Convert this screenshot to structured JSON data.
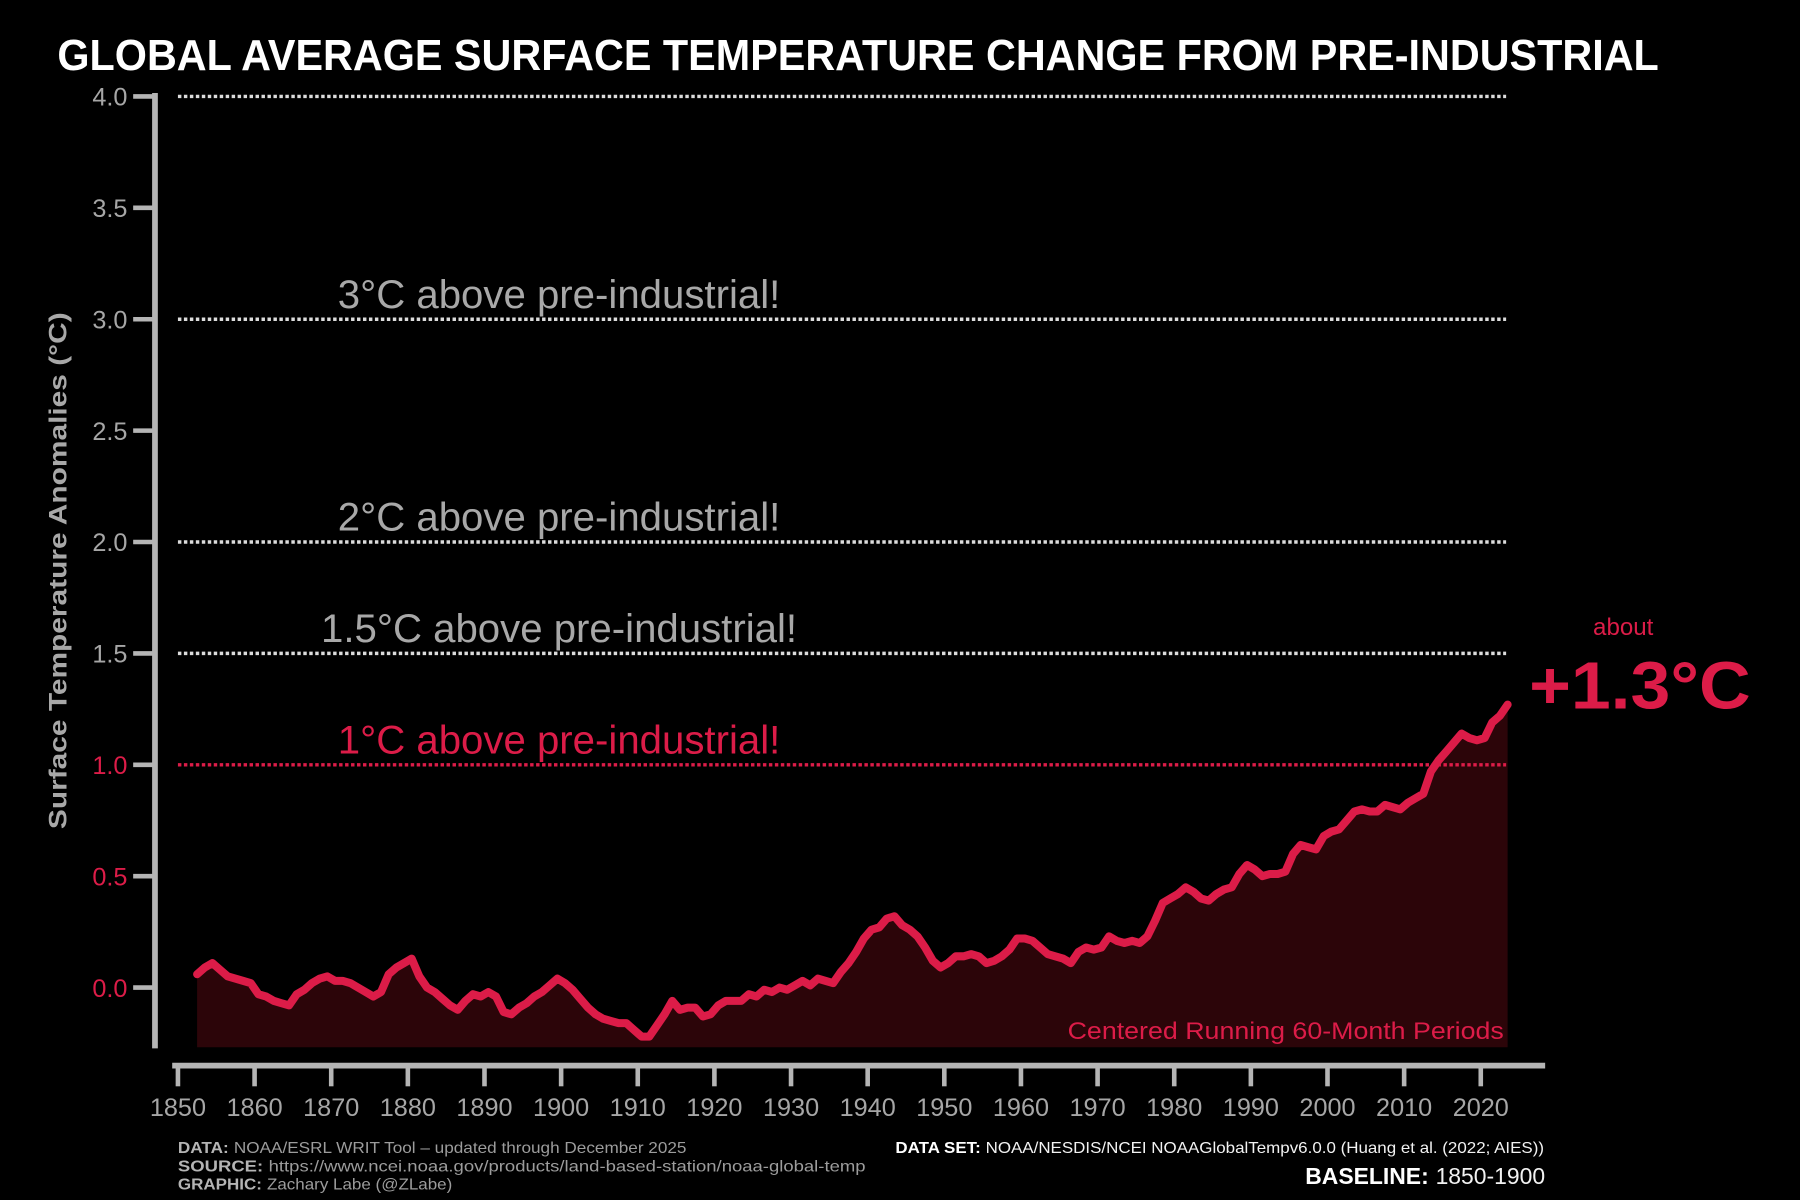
{
  "chart_data": {
    "type": "area",
    "title": "GLOBAL AVERAGE SURFACE TEMPERATURE CHANGE FROM PRE-INDUSTRIAL",
    "xlabel": "",
    "ylabel": "Surface Temperature Anomalies (°C)",
    "xlim": [
      1849.25,
      2028.4
    ],
    "ylim": [
      -0.268,
      4.0
    ],
    "grid": false,
    "x_ticks": [
      {
        "value": 1850,
        "label": "1850"
      },
      {
        "value": 1860,
        "label": "1860"
      },
      {
        "value": 1870,
        "label": "1870"
      },
      {
        "value": 1880,
        "label": "1880"
      },
      {
        "value": 1890,
        "label": "1890"
      },
      {
        "value": 1900,
        "label": "1900"
      },
      {
        "value": 1910,
        "label": "1910"
      },
      {
        "value": 1920,
        "label": "1920"
      },
      {
        "value": 1930,
        "label": "1930"
      },
      {
        "value": 1940,
        "label": "1940"
      },
      {
        "value": 1950,
        "label": "1950"
      },
      {
        "value": 1960,
        "label": "1960"
      },
      {
        "value": 1970,
        "label": "1970"
      },
      {
        "value": 1980,
        "label": "1980"
      },
      {
        "value": 1990,
        "label": "1990"
      },
      {
        "value": 2000,
        "label": "2000"
      },
      {
        "value": 2010,
        "label": "2010"
      },
      {
        "value": 2020,
        "label": "2020"
      }
    ],
    "y_ticks": [
      {
        "value": 0.0,
        "label": "0.0",
        "color": "#dc1c48"
      },
      {
        "value": 0.5,
        "label": "0.5",
        "color": "#dc1c48"
      },
      {
        "value": 1.0,
        "label": "1.0",
        "color": "#dc1c48"
      },
      {
        "value": 1.5,
        "label": "1.5",
        "color": "#a6a6a6"
      },
      {
        "value": 2.0,
        "label": "2.0",
        "color": "#a6a6a6"
      },
      {
        "value": 2.5,
        "label": "2.5",
        "color": "#a6a6a6"
      },
      {
        "value": 3.0,
        "label": "3.0",
        "color": "#a6a6a6"
      },
      {
        "value": 3.5,
        "label": "3.5",
        "color": "#a6a6a6"
      },
      {
        "value": 4.0,
        "label": "4.0",
        "color": "#a6a6a6"
      }
    ],
    "thresholds": [
      {
        "value": 4.0,
        "color": "#dcdcdc"
      },
      {
        "value": 3.0,
        "label": "3°C above pre-industrial!",
        "color": "#dcdcdc",
        "label_color": "#a8a8a8"
      },
      {
        "value": 2.0,
        "label": "2°C above pre-industrial!",
        "color": "#dcdcdc",
        "label_color": "#a8a8a8"
      },
      {
        "value": 1.5,
        "label": "1.5°C above pre-industrial!",
        "color": "#dcdcdc",
        "label_color": "#a8a8a8"
      },
      {
        "value": 1.0,
        "label": "1°C above pre-industrial!",
        "color": "#dc1c48",
        "label_color": "#dc1c48"
      }
    ],
    "series": [
      {
        "name": "Centered Running 60-Month Periods",
        "color": "#dc1c48",
        "fill": "#2c0509",
        "x": [
          1852.5,
          1853.5,
          1854.5,
          1855.5,
          1856.5,
          1857.5,
          1858.5,
          1859.5,
          1860.5,
          1861.5,
          1862.5,
          1863.5,
          1864.5,
          1865.5,
          1866.5,
          1867.5,
          1868.5,
          1869.5,
          1870.5,
          1871.5,
          1872.5,
          1873.5,
          1874.5,
          1875.5,
          1876.5,
          1877.5,
          1878.5,
          1879.5,
          1880.5,
          1881.5,
          1882.5,
          1883.5,
          1884.5,
          1885.5,
          1886.5,
          1887.5,
          1888.5,
          1889.5,
          1890.5,
          1891.5,
          1892.5,
          1893.5,
          1894.5,
          1895.5,
          1896.5,
          1897.5,
          1898.5,
          1899.5,
          1900.5,
          1901.5,
          1902.5,
          1903.5,
          1904.5,
          1905.5,
          1906.5,
          1907.5,
          1908.5,
          1909.5,
          1910.5,
          1911.5,
          1912.5,
          1913.5,
          1914.5,
          1915.5,
          1916.5,
          1917.5,
          1918.5,
          1919.5,
          1920.5,
          1921.5,
          1922.5,
          1923.5,
          1924.5,
          1925.5,
          1926.5,
          1927.5,
          1928.5,
          1929.5,
          1930.5,
          1931.5,
          1932.5,
          1933.5,
          1934.5,
          1935.5,
          1936.5,
          1937.5,
          1938.5,
          1939.5,
          1940.5,
          1941.5,
          1942.5,
          1943.5,
          1944.5,
          1945.5,
          1946.5,
          1947.5,
          1948.5,
          1949.5,
          1950.5,
          1951.5,
          1952.5,
          1953.5,
          1954.5,
          1955.5,
          1956.5,
          1957.5,
          1958.5,
          1959.5,
          1960.5,
          1961.5,
          1962.5,
          1963.5,
          1964.5,
          1965.5,
          1966.5,
          1967.5,
          1968.5,
          1969.5,
          1970.5,
          1971.5,
          1972.5,
          1973.5,
          1974.5,
          1975.5,
          1976.5,
          1977.5,
          1978.5,
          1979.5,
          1980.5,
          1981.5,
          1982.5,
          1983.5,
          1984.5,
          1985.5,
          1986.5,
          1987.5,
          1988.5,
          1989.5,
          1990.5,
          1991.5,
          1992.5,
          1993.5,
          1994.5,
          1995.5,
          1996.5,
          1997.5,
          1998.5,
          1999.5,
          2000.5,
          2001.5,
          2002.5,
          2003.5,
          2004.5,
          2005.5,
          2006.5,
          2007.5,
          2008.5,
          2009.5,
          2010.5,
          2011.5,
          2012.5,
          2013.5,
          2014.5,
          2015.5,
          2016.5,
          2017.5,
          2018.5,
          2019.5,
          2020.5,
          2021.5,
          2022.5,
          2023.5
        ],
        "values": [
          0.06,
          0.09,
          0.11,
          0.08,
          0.05,
          0.04,
          0.03,
          0.02,
          -0.03,
          -0.04,
          -0.06,
          -0.07,
          -0.08,
          -0.03,
          -0.01,
          0.02,
          0.04,
          0.05,
          0.03,
          0.03,
          0.02,
          0.0,
          -0.02,
          -0.04,
          -0.02,
          0.06,
          0.09,
          0.11,
          0.13,
          0.05,
          0.0,
          -0.02,
          -0.05,
          -0.08,
          -0.1,
          -0.06,
          -0.03,
          -0.04,
          -0.02,
          -0.04,
          -0.11,
          -0.12,
          -0.09,
          -0.07,
          -0.04,
          -0.02,
          0.01,
          0.04,
          0.02,
          -0.01,
          -0.05,
          -0.09,
          -0.12,
          -0.14,
          -0.15,
          -0.16,
          -0.16,
          -0.19,
          -0.22,
          -0.22,
          -0.17,
          -0.12,
          -0.06,
          -0.1,
          -0.09,
          -0.09,
          -0.13,
          -0.12,
          -0.08,
          -0.06,
          -0.06,
          -0.06,
          -0.03,
          -0.04,
          -0.01,
          -0.02,
          0.0,
          -0.01,
          0.01,
          0.03,
          0.01,
          0.04,
          0.03,
          0.02,
          0.07,
          0.11,
          0.16,
          0.22,
          0.26,
          0.27,
          0.31,
          0.32,
          0.28,
          0.26,
          0.23,
          0.18,
          0.12,
          0.09,
          0.11,
          0.14,
          0.14,
          0.15,
          0.14,
          0.11,
          0.12,
          0.14,
          0.17,
          0.22,
          0.22,
          0.21,
          0.18,
          0.15,
          0.14,
          0.13,
          0.11,
          0.16,
          0.18,
          0.17,
          0.18,
          0.23,
          0.21,
          0.2,
          0.21,
          0.2,
          0.23,
          0.3,
          0.38,
          0.4,
          0.42,
          0.45,
          0.43,
          0.4,
          0.39,
          0.42,
          0.44,
          0.45,
          0.51,
          0.55,
          0.53,
          0.5,
          0.51,
          0.51,
          0.52,
          0.6,
          0.64,
          0.63,
          0.62,
          0.68,
          0.7,
          0.71,
          0.75,
          0.79,
          0.8,
          0.79,
          0.79,
          0.82,
          0.81,
          0.8,
          0.83,
          0.85,
          0.87,
          0.97,
          1.02,
          1.06,
          1.1,
          1.14,
          1.12,
          1.11,
          1.12,
          1.19,
          1.22,
          1.27
        ]
      }
    ],
    "annotations": {
      "about": "about",
      "latest": "+1.3°C"
    }
  },
  "footer": {
    "data_label": "DATA:",
    "data_text": "NOAA/ESRL WRIT Tool – updated through December 2025",
    "source_label": "SOURCE:",
    "source_text": "https://www.ncei.noaa.gov/products/land-based-station/noaa-global-temp",
    "graphic_label": "GRAPHIC:",
    "graphic_text": "Zachary Labe (@ZLabe)",
    "dataset_label": "DATA SET:",
    "dataset_text": "NOAA/NESDIS/NCEI NOAAGlobalTempv6.0.0 (Huang et al. (2022; AIES))",
    "baseline_label": "BASELINE:",
    "baseline_text": "1850-1900"
  }
}
